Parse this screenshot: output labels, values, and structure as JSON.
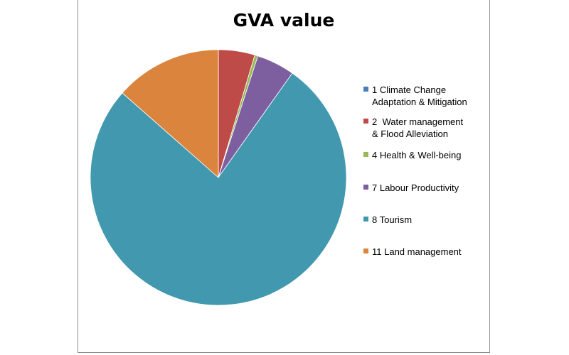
{
  "chart_data": {
    "type": "pie",
    "title": "GVA value",
    "legend_position": "right",
    "slices": [
      {
        "label": "1 Climate Change\nAdaptation & Mitigation",
        "value": 0.0,
        "color": "#4a7ebb"
      },
      {
        "label": "2  Water management\n& Flood Alleviation",
        "value": 4.6,
        "color": "#be4b48"
      },
      {
        "label": "4 Health & Well-being",
        "value": 0.4,
        "color": "#98b954"
      },
      {
        "label": "7 Labour Productivity",
        "value": 4.8,
        "color": "#7d5fa0"
      },
      {
        "label": "8 Tourism",
        "value": 76.7,
        "color": "#4198af"
      },
      {
        "label": "11 Land management",
        "value": 13.5,
        "color": "#db843d"
      }
    ]
  }
}
